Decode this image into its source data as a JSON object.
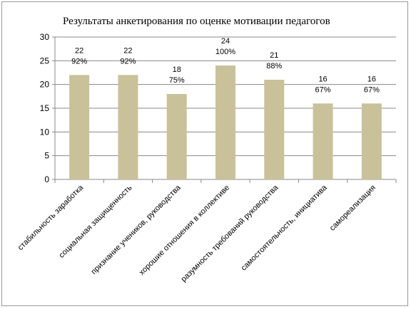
{
  "chart_data": {
    "type": "bar",
    "title": "Результаты  анкетирования по оценке мотивации педагогов",
    "xlabel": "",
    "ylabel": "",
    "categories": [
      "стабильность заработка",
      "социальная защищенность",
      "признание учеников,  руководства",
      "хорошие отношения  в коллективе",
      "разумность требований  руководства",
      "самостоятельность, инициатива",
      "самореализация"
    ],
    "values": [
      22,
      22,
      18,
      24,
      21,
      16,
      16
    ],
    "percent_labels": [
      "92%",
      "92%",
      "75%",
      "100%",
      "88%",
      "67%",
      "67%"
    ],
    "ylim": [
      0,
      30
    ],
    "yticks": [
      0,
      5,
      10,
      15,
      20,
      25,
      30
    ],
    "grid": true,
    "legend": "none",
    "bar_color": "#c9c19a",
    "grid_color": "#888888"
  }
}
